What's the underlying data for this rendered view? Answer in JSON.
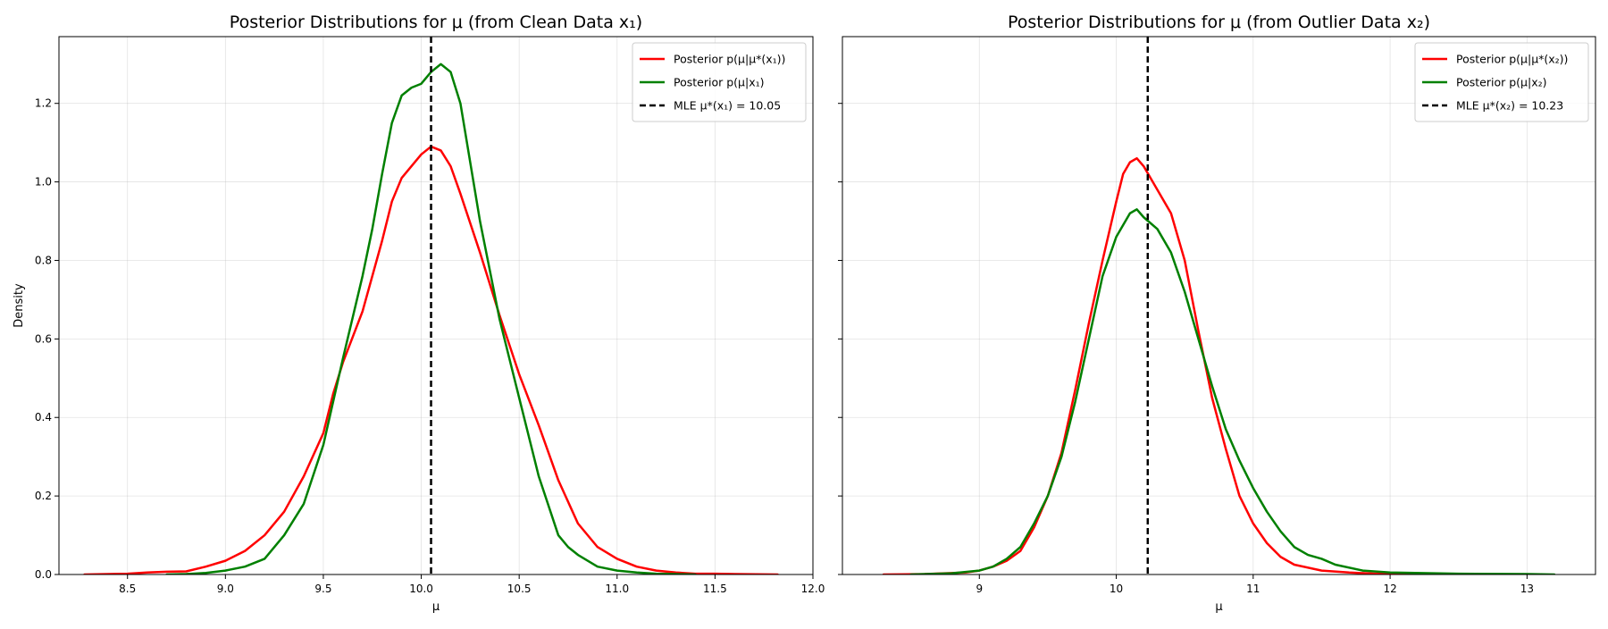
{
  "chart_data": [
    {
      "type": "line",
      "title": "Posterior Distributions for μ (from Clean Data x₁)",
      "xlabel": "μ",
      "ylabel": "Density",
      "xlim": [
        8.15,
        12.0
      ],
      "ylim": [
        0.0,
        1.37
      ],
      "xticks": [
        8.5,
        9.0,
        9.5,
        10.0,
        10.5,
        11.0,
        11.5,
        12.0
      ],
      "xtick_labels": [
        "8.5",
        "9.0",
        "9.5",
        "10.0",
        "10.5",
        "11.0",
        "11.5",
        "12.0"
      ],
      "yticks": [
        0.0,
        0.2,
        0.4,
        0.6,
        0.8,
        1.0,
        1.2
      ],
      "ytick_labels": [
        "0.0",
        "0.2",
        "0.4",
        "0.6",
        "0.8",
        "1.0",
        "1.2"
      ],
      "grid": true,
      "legend_position": "top-right",
      "series": [
        {
          "name": "Posterior p(μ|μ*(x₁))",
          "color": "#ff0000",
          "x": [
            8.28,
            8.5,
            8.6,
            8.7,
            8.8,
            8.9,
            9.0,
            9.1,
            9.2,
            9.3,
            9.4,
            9.5,
            9.55,
            9.6,
            9.7,
            9.8,
            9.85,
            9.9,
            10.0,
            10.05,
            10.1,
            10.15,
            10.2,
            10.3,
            10.4,
            10.5,
            10.6,
            10.7,
            10.8,
            10.9,
            11.0,
            11.1,
            11.2,
            11.3,
            11.4,
            11.5,
            11.6,
            11.82
          ],
          "y": [
            0.0,
            0.002,
            0.005,
            0.007,
            0.008,
            0.02,
            0.035,
            0.06,
            0.1,
            0.16,
            0.25,
            0.36,
            0.46,
            0.54,
            0.67,
            0.85,
            0.95,
            1.01,
            1.07,
            1.09,
            1.08,
            1.04,
            0.97,
            0.82,
            0.66,
            0.51,
            0.38,
            0.24,
            0.13,
            0.07,
            0.04,
            0.02,
            0.01,
            0.005,
            0.002,
            0.002,
            0.001,
            0.0
          ]
        },
        {
          "name": "Posterior p(μ|x₁)",
          "color": "#008000",
          "x": [
            8.7,
            8.8,
            8.9,
            9.0,
            9.1,
            9.2,
            9.3,
            9.4,
            9.5,
            9.6,
            9.7,
            9.75,
            9.8,
            9.85,
            9.9,
            9.95,
            10.0,
            10.05,
            10.1,
            10.15,
            10.2,
            10.3,
            10.4,
            10.5,
            10.6,
            10.7,
            10.75,
            10.8,
            10.9,
            11.0,
            11.1,
            11.2,
            11.3,
            11.4
          ],
          "y": [
            0.0,
            0.001,
            0.004,
            0.01,
            0.02,
            0.04,
            0.1,
            0.18,
            0.33,
            0.55,
            0.76,
            0.88,
            1.02,
            1.15,
            1.22,
            1.24,
            1.25,
            1.28,
            1.3,
            1.28,
            1.2,
            0.9,
            0.65,
            0.45,
            0.25,
            0.1,
            0.07,
            0.05,
            0.02,
            0.01,
            0.005,
            0.002,
            0.001,
            0.0
          ]
        },
        {
          "name": "MLE μ*(x₁) = 10.05",
          "color": "#000000",
          "style": "dashed",
          "vline": 10.05
        }
      ]
    },
    {
      "type": "line",
      "title": "Posterior Distributions for μ (from Outlier Data x₂)",
      "xlabel": "μ",
      "ylabel": "",
      "xlim": [
        8.0,
        13.5
      ],
      "ylim": [
        0.0,
        1.37
      ],
      "xticks": [
        9,
        10,
        11,
        12,
        13
      ],
      "xtick_labels": [
        "9",
        "10",
        "11",
        "12",
        "13"
      ],
      "yticks": [
        0.0,
        0.2,
        0.4,
        0.6,
        0.8,
        1.0,
        1.2
      ],
      "ytick_labels": [],
      "grid": true,
      "legend_position": "top-right",
      "series": [
        {
          "name": "Posterior p(μ|μ*(x₂))",
          "color": "#ff0000",
          "x": [
            8.3,
            8.6,
            8.9,
            9.0,
            9.1,
            9.2,
            9.3,
            9.4,
            9.5,
            9.6,
            9.7,
            9.8,
            9.9,
            10.0,
            10.05,
            10.1,
            10.15,
            10.2,
            10.3,
            10.4,
            10.5,
            10.6,
            10.7,
            10.8,
            10.9,
            11.0,
            11.1,
            11.2,
            11.3,
            11.5,
            11.7,
            11.9,
            12.3
          ],
          "y": [
            0.0,
            0.001,
            0.005,
            0.01,
            0.02,
            0.035,
            0.06,
            0.12,
            0.2,
            0.31,
            0.47,
            0.64,
            0.8,
            0.95,
            1.02,
            1.05,
            1.06,
            1.04,
            0.98,
            0.92,
            0.8,
            0.62,
            0.45,
            0.32,
            0.2,
            0.13,
            0.08,
            0.045,
            0.025,
            0.01,
            0.005,
            0.002,
            0.0
          ]
        },
        {
          "name": "Posterior p(μ|x₂)",
          "color": "#008000",
          "x": [
            8.5,
            8.8,
            9.0,
            9.1,
            9.2,
            9.3,
            9.4,
            9.5,
            9.6,
            9.7,
            9.8,
            9.9,
            10.0,
            10.1,
            10.15,
            10.2,
            10.3,
            10.4,
            10.5,
            10.6,
            10.7,
            10.8,
            10.9,
            11.0,
            11.1,
            11.2,
            11.3,
            11.4,
            11.5,
            11.6,
            11.8,
            12.0,
            12.5,
            13.0,
            13.2
          ],
          "y": [
            0.0,
            0.003,
            0.01,
            0.02,
            0.04,
            0.07,
            0.13,
            0.2,
            0.3,
            0.44,
            0.6,
            0.76,
            0.86,
            0.92,
            0.93,
            0.91,
            0.88,
            0.82,
            0.72,
            0.6,
            0.48,
            0.37,
            0.29,
            0.22,
            0.16,
            0.11,
            0.07,
            0.05,
            0.04,
            0.025,
            0.01,
            0.005,
            0.002,
            0.001,
            0.0
          ]
        },
        {
          "name": "MLE μ*(x₂) = 10.23",
          "color": "#000000",
          "style": "dashed",
          "vline": 10.23
        }
      ]
    }
  ]
}
